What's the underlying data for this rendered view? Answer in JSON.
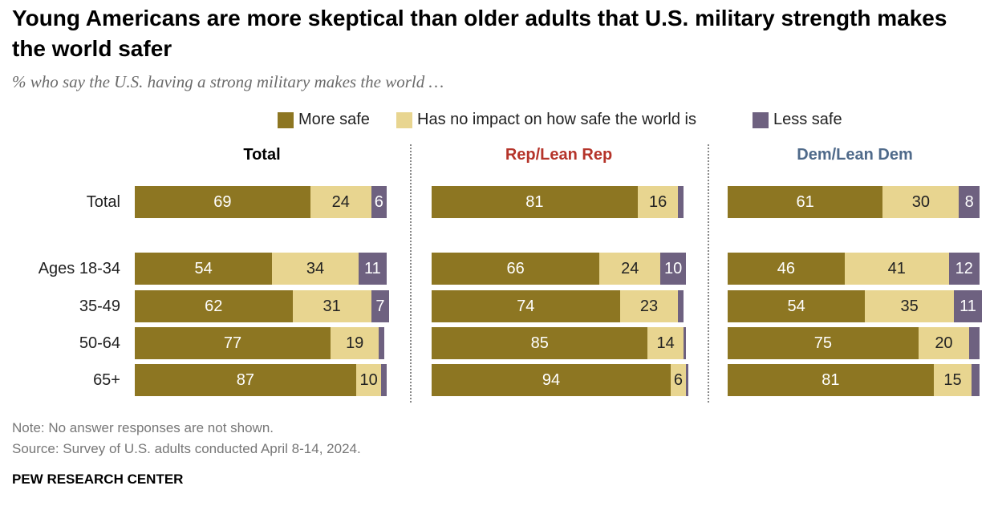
{
  "title": "Young Americans are more skeptical than older adults that U.S. military strength makes the world safer",
  "subtitle": "% who say the U.S. having a strong military makes the world …",
  "note": "Note: No answer responses are not shown.",
  "source": "Source: Survey of U.S. adults conducted April 8-14, 2024.",
  "brand": "PEW RESEARCH CENTER",
  "colors": {
    "more_safe": "#8d7622",
    "no_impact": "#e8d590",
    "less_safe": "#6e6180",
    "rep": "#b5342a",
    "dem": "#4f6a8a",
    "total": "#000000"
  },
  "chart_data": {
    "type": "bar",
    "orientation": "horizontal-stacked",
    "legend": [
      "More safe",
      "Has no impact on how safe the world is",
      "Less safe"
    ],
    "categories": [
      "Total",
      "Ages 18-34",
      "35-49",
      "50-64",
      "65+"
    ],
    "panels": [
      {
        "title": "Total",
        "series": [
          {
            "name": "More safe",
            "values": [
              69,
              54,
              62,
              77,
              87
            ]
          },
          {
            "name": "Has no impact on how safe the world is",
            "values": [
              24,
              34,
              31,
              19,
              10
            ]
          },
          {
            "name": "Less safe",
            "values": [
              6,
              11,
              7,
              2,
              2
            ]
          }
        ],
        "labels": [
          [
            "69",
            "24",
            "6"
          ],
          [
            "54",
            "34",
            "11"
          ],
          [
            "62",
            "31",
            "7"
          ],
          [
            "77",
            "19",
            ""
          ],
          [
            "87",
            "10",
            ""
          ]
        ]
      },
      {
        "title": "Rep/Lean Rep",
        "series": [
          {
            "name": "More safe",
            "values": [
              81,
              66,
              74,
              85,
              94
            ]
          },
          {
            "name": "Has no impact on how safe the world is",
            "values": [
              16,
              24,
              23,
              14,
              6
            ]
          },
          {
            "name": "Less safe",
            "values": [
              2,
              10,
              2,
              1,
              1
            ]
          }
        ],
        "labels": [
          [
            "81",
            "16",
            ""
          ],
          [
            "66",
            "24",
            "10"
          ],
          [
            "74",
            "23",
            ""
          ],
          [
            "85",
            "14",
            ""
          ],
          [
            "94",
            "6",
            ""
          ]
        ]
      },
      {
        "title": "Dem/Lean Dem",
        "series": [
          {
            "name": "More safe",
            "values": [
              61,
              46,
              54,
              75,
              81
            ]
          },
          {
            "name": "Has no impact on how safe the world is",
            "values": [
              30,
              41,
              35,
              20,
              15
            ]
          },
          {
            "name": "Less safe",
            "values": [
              8,
              12,
              11,
              4,
              3
            ]
          }
        ],
        "labels": [
          [
            "61",
            "30",
            "8"
          ],
          [
            "46",
            "41",
            "12"
          ],
          [
            "54",
            "35",
            "11"
          ],
          [
            "75",
            "20",
            ""
          ],
          [
            "81",
            "15",
            ""
          ]
        ]
      }
    ]
  }
}
